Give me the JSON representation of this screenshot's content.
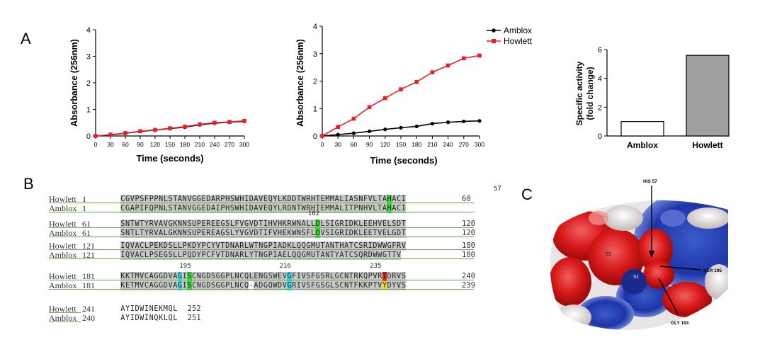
{
  "panel_labels": {
    "a": "A",
    "b": "B",
    "c": "C"
  },
  "chart_data": [
    {
      "type": "line",
      "xlabel": "Time (seconds)",
      "ylabel": "Absorbance (256nm)",
      "x": [
        0,
        30,
        60,
        90,
        120,
        150,
        180,
        210,
        240,
        270,
        300
      ],
      "xlim": [
        0,
        300
      ],
      "ylim": [
        0,
        4
      ],
      "yticks": [
        0,
        1,
        2,
        3,
        4
      ],
      "series": [
        {
          "color": "#000000",
          "values": [
            0,
            0.04,
            0.1,
            0.17,
            0.22,
            0.28,
            0.33,
            0.42,
            0.48,
            0.52,
            0.55
          ]
        },
        {
          "color": "#e8202a",
          "values": [
            0,
            0.05,
            0.11,
            0.18,
            0.23,
            0.29,
            0.35,
            0.44,
            0.5,
            0.53,
            0.57
          ]
        }
      ]
    },
    {
      "type": "line",
      "xlabel": "Time (seconds)",
      "ylabel": "Absorbance (256nm)",
      "x": [
        0,
        30,
        60,
        90,
        120,
        150,
        180,
        210,
        240,
        270,
        300
      ],
      "xlim": [
        0,
        300
      ],
      "ylim": [
        0,
        4
      ],
      "yticks": [
        0,
        1,
        2,
        3,
        4
      ],
      "legend": "top-right",
      "series": [
        {
          "name": "Amblox",
          "color": "#000000",
          "values": [
            0,
            0.05,
            0.1,
            0.17,
            0.24,
            0.3,
            0.35,
            0.45,
            0.5,
            0.53,
            0.55
          ]
        },
        {
          "name": "Howlett",
          "color": "#e8202a",
          "values": [
            0,
            0.33,
            0.63,
            1.05,
            1.38,
            1.7,
            1.97,
            2.32,
            2.57,
            2.83,
            2.93
          ]
        }
      ]
    },
    {
      "type": "bar",
      "ylabel": "Specific activity (fold change)",
      "ylabel_lines": [
        "Specific activity",
        "(fold change)"
      ],
      "categories": [
        "Amblox",
        "Howlett"
      ],
      "values": [
        1,
        5.6
      ],
      "bar_colors": [
        "#ffffff",
        "#a0a0a0"
      ],
      "ylim": [
        0,
        6
      ],
      "yticks": [
        0,
        2,
        4,
        6
      ]
    }
  ],
  "alignment": {
    "blocks": [
      {
        "pos_labels": [
          {
            "text": "57",
            "col": 79
          }
        ],
        "rows": [
          {
            "name": "Howlett",
            "start": "1",
            "end": "60",
            "seq": "CGVPSFPPNLSTANVGGEDARPHSWHIDAVEQYLKDDTWRHTEMMALIASNFVLTAHACI",
            "highlights": [
              [
                56,
                "green"
              ]
            ]
          },
          {
            "name": "Amblox",
            "start": "1",
            "end": "",
            "seq": "CGAPIFQPNLSTANVGGEDAIPHSWHIDAVEQYLRDNTWRHTEMMALITPNHVLTAHACI",
            "highlights": [
              [
                56,
                "green"
              ]
            ]
          }
        ]
      },
      {
        "pos_labels": [
          {
            "text": "102",
            "col": 40
          }
        ],
        "rows": [
          {
            "name": "Howlett",
            "start": "61",
            "end": "120",
            "seq": "SNTWTYRVAVGKNNSUPEREEGSLFVGVDTIHVHKRWNALLDLSIGRIDKLEEHVELSDT",
            "highlights": [
              [
                41,
                "green"
              ]
            ]
          },
          {
            "name": "Amblox",
            "start": "61",
            "end": "120",
            "seq": "SNTLTYRVALGKNNSUPEREAGSLYVGVDTIFVHEKWNSFLDVSIGRIDKLEETVELGDT",
            "highlights": [
              [
                41,
                "green"
              ]
            ]
          }
        ]
      },
      {
        "pos_labels": [],
        "rows": [
          {
            "name": "Howlett",
            "start": "121",
            "end": "180",
            "seq": "IQVACLPEKDSLLPKDYPCYVTDNARLWTNGPIADKLQQGMUTANTHATCSRIDWWGFRV",
            "highlights": []
          },
          {
            "name": "Amblox",
            "start": "121",
            "end": "180",
            "seq": "IQVACLPSEGSLLPQDYPCFVTDNARLYTNGPIAELQQGMUTANTYATCSQRDWWGTTV",
            "highlights": []
          }
        ]
      },
      {
        "pos_labels": [
          {
            "text": "195",
            "col": 13
          },
          {
            "text": "216",
            "col": 34
          },
          {
            "text": "235",
            "col": 53
          }
        ],
        "rows": [
          {
            "name": "Howlett",
            "start": "181",
            "end": "240",
            "seq": "KKTMVCAGGDVAGISCNGDSGGPLNCQLENGSWEVGFIVSFGSRLGCNTRKQPVRTDRVS",
            "highlights": [
              [
                12,
                "cyan"
              ],
              [
                14,
                "green"
              ],
              [
                35,
                "cyan"
              ],
              [
                55,
                "red"
              ]
            ]
          },
          {
            "name": "Amblox",
            "start": "181",
            "end": "239",
            "seq": "KETMVCAGGDVAGISCNGDSGGPLNCQ-ADGQWDVGRIVSFGSGLSCNTFKKPTVYDYVS",
            "highlights": [
              [
                12,
                "cyan"
              ],
              [
                14,
                "green"
              ],
              [
                35,
                "cyan"
              ],
              [
                55,
                "yellow"
              ]
            ]
          }
        ]
      },
      {
        "pos_labels": [],
        "rows": [
          {
            "name": "Howlett",
            "start": "241",
            "end": "252",
            "seq": "AYIDWINEKMQL",
            "highlights": [],
            "plain": true
          },
          {
            "name": "Amblox",
            "start": "240",
            "end": "251",
            "seq": "AYIDWINQKLQL",
            "highlights": [],
            "plain": true
          }
        ]
      }
    ]
  },
  "structure": {
    "labels": {
      "his57": "HIS 57",
      "ser195": "SER 195",
      "gly193": "GLY 193",
      "s2": "S2",
      "s1": "S1"
    }
  }
}
